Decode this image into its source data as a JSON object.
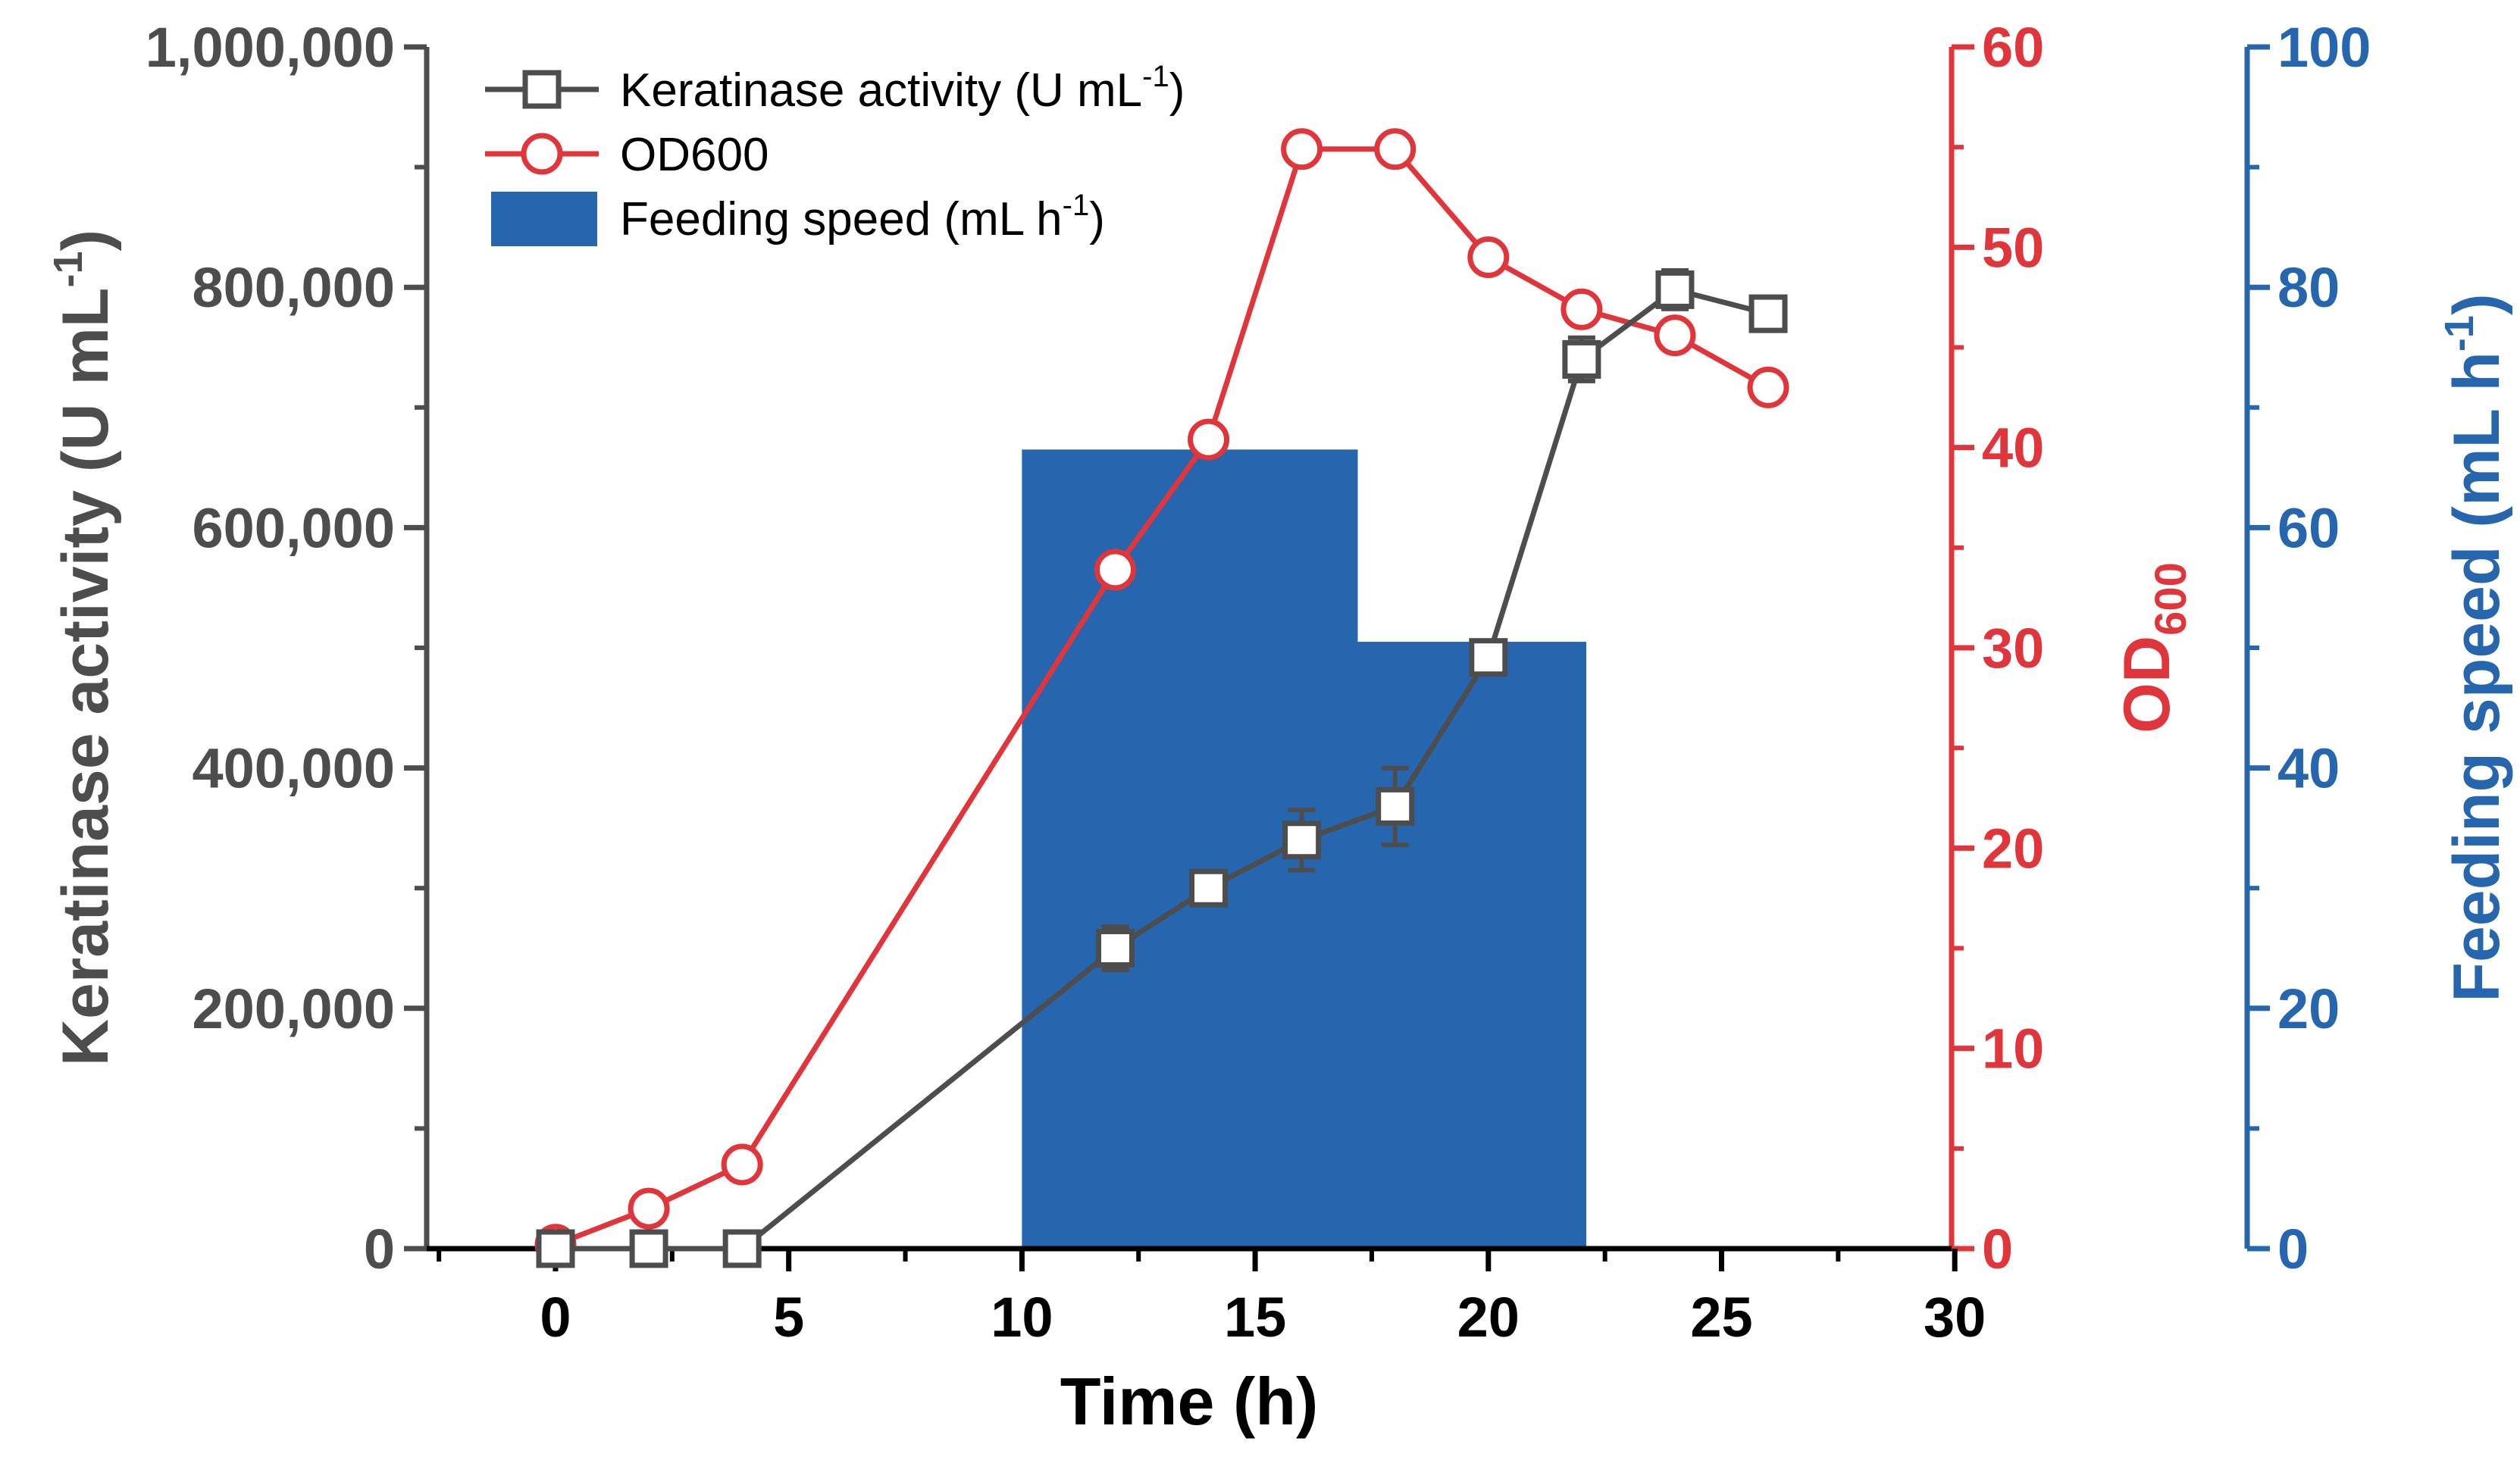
{
  "chart_data": {
    "type": "line+bar",
    "xlabel": "Time (h)",
    "xlim": [
      -2.5,
      30
    ],
    "x_ticks": [
      0,
      5,
      10,
      15,
      20,
      25,
      30
    ],
    "x_tick_labels": [
      "0",
      "5",
      "10",
      "15",
      "20",
      "25",
      "30"
    ],
    "axes": {
      "left": {
        "label": "Keratinase activity (U mL",
        "label_sup": "-1",
        "label_close": ")",
        "ylim": [
          0,
          1000000
        ],
        "ticks": [
          0,
          200000,
          400000,
          600000,
          800000,
          1000000
        ],
        "tick_labels": [
          "0",
          "200,000",
          "400,000",
          "600,000",
          "800,000",
          "1,000,000"
        ],
        "color": "#4d4d4d"
      },
      "right1": {
        "label": "OD",
        "label_sub": "600",
        "ylim": [
          0,
          60
        ],
        "ticks": [
          0,
          10,
          20,
          30,
          40,
          50,
          60
        ],
        "tick_labels": [
          "0",
          "10",
          "20",
          "30",
          "40",
          "50",
          "60"
        ],
        "color": "#e0353b"
      },
      "right2": {
        "label": "Feeding speed (mL h",
        "label_sup": "-1",
        "label_close": ")",
        "ylim": [
          0,
          100
        ],
        "ticks": [
          0,
          20,
          40,
          60,
          80,
          100
        ],
        "tick_labels": [
          "0",
          "20",
          "40",
          "60",
          "80",
          "100"
        ],
        "color": "#2566ae"
      }
    },
    "series": [
      {
        "name": "Keratinase activity (U mL",
        "name_sup": "-1",
        "name_close": ")",
        "type": "line",
        "marker": "square",
        "axis": "left",
        "color": "#4d4d4d",
        "x": [
          0,
          2,
          4,
          12,
          14,
          16,
          18,
          20,
          22,
          24,
          26
        ],
        "y": [
          0,
          0,
          0,
          250000,
          300000,
          340000,
          368000,
          492000,
          740000,
          798000,
          778000
        ],
        "err": [
          0,
          0,
          0,
          18000,
          12000,
          25000,
          32000,
          12000,
          18000,
          16000,
          12000
        ]
      },
      {
        "name": "OD600",
        "type": "line",
        "marker": "circle",
        "axis": "right1",
        "color": "#e0353b",
        "x": [
          0,
          2,
          4,
          12,
          14,
          16,
          18,
          20,
          22,
          24,
          26
        ],
        "y": [
          0.2,
          2.0,
          4.2,
          33.9,
          40.4,
          54.9,
          54.9,
          49.5,
          46.9,
          45.6,
          43.0
        ]
      },
      {
        "name": "Feeding speed (mL h",
        "name_sup": "-1",
        "name_close": ")",
        "type": "bar",
        "axis": "right2",
        "color": "#2566ae",
        "segments": [
          {
            "x_start": 10,
            "x_end": 17.2,
            "value": 66.5
          },
          {
            "x_start": 17.2,
            "x_end": 22.1,
            "value": 50.5
          }
        ]
      }
    ]
  }
}
